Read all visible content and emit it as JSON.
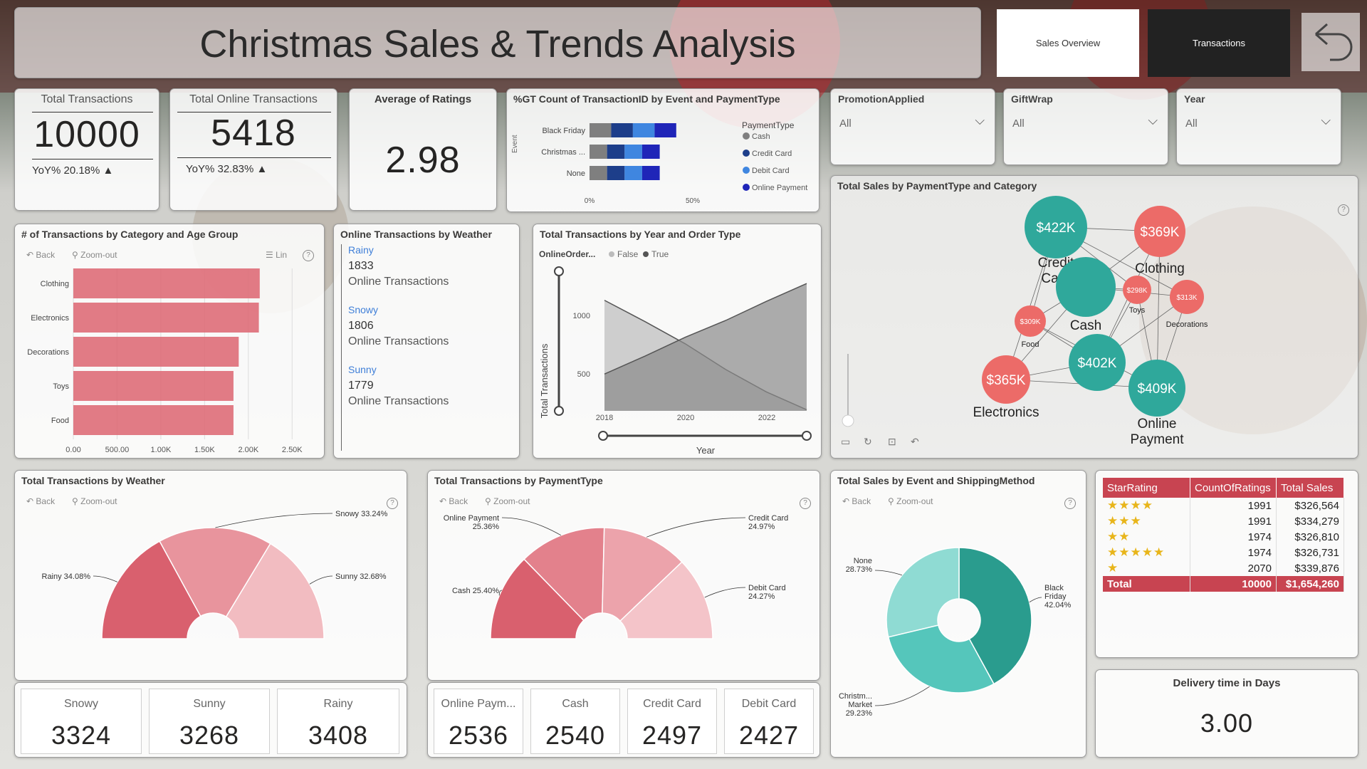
{
  "header": {
    "title": "Christmas Sales & Trends Analysis"
  },
  "nav": {
    "sales_overview": "Sales Overview",
    "transactions": "Transactions"
  },
  "kpis": {
    "total_transactions": {
      "label": "Total Transactions",
      "value": "10000",
      "yoy": "YoY% 20.18% ▲"
    },
    "total_online": {
      "label": "Total Online Transactions",
      "value": "5418",
      "yoy": "YoY% 32.83% ▲"
    },
    "avg_ratings": {
      "label": "Average of Ratings",
      "value": "2.98"
    }
  },
  "slicers": [
    {
      "label": "PromotionApplied",
      "value": "All"
    },
    {
      "label": "GiftWrap",
      "value": "All"
    },
    {
      "label": "Year",
      "value": "All"
    }
  ],
  "event_payment": {
    "title": "%GT Count of TransactionID by Event and PaymentType",
    "axis_label": "Event",
    "legend_title": "PaymentType",
    "legend": [
      "Cash",
      "Credit Card",
      "Debit Card",
      "Online Payment"
    ],
    "categories": [
      "Black Friday",
      "Christmas ...",
      "None"
    ],
    "ticks": [
      "0%",
      "50%"
    ]
  },
  "category_age": {
    "title": "# of Transactions by Category and Age Group",
    "toolbar": {
      "back": "Back",
      "zoom": "Zoom-out",
      "lin": "Lin"
    },
    "categories": [
      "Clothing",
      "Electronics",
      "Decorations",
      "Toys",
      "Food"
    ],
    "ticks": [
      "0.00",
      "500.00",
      "1.00K",
      "1.50K",
      "2.00K",
      "2.50K"
    ]
  },
  "online_weather": {
    "title": "Online Transactions by Weather",
    "items": [
      {
        "label": "Rainy",
        "value": "1833",
        "sub": "Online Transactions"
      },
      {
        "label": "Snowy",
        "value": "1806",
        "sub": "Online Transactions"
      },
      {
        "label": "Sunny",
        "value": "1779",
        "sub": "Online Transactions"
      }
    ]
  },
  "year_order": {
    "title": "Total Transactions by Year and Order Type",
    "legend_title": "OnlineOrder...",
    "legend": [
      "False",
      "True"
    ],
    "ylabel": "Total Transactions",
    "xlabel": "Year",
    "yticks": [
      "1000",
      "500"
    ],
    "xticks": [
      "2018",
      "2020",
      "2022"
    ]
  },
  "network": {
    "title": "Total Sales by PaymentType and Category",
    "nodes": [
      {
        "value": "$422K",
        "label": "Credit Card",
        "type": "payment"
      },
      {
        "value": "$369K",
        "label": "Clothing",
        "type": "category"
      },
      {
        "value": "",
        "label": "Cash",
        "type": "payment"
      },
      {
        "value": "$298K",
        "label": "Toys",
        "type": "category"
      },
      {
        "value": "$313K",
        "label": "Decorations",
        "type": "category"
      },
      {
        "value": "$309K",
        "label": "Food",
        "type": "category"
      },
      {
        "value": "$402K",
        "label": "",
        "type": "payment"
      },
      {
        "value": "$365K",
        "label": "Electronics",
        "type": "category"
      },
      {
        "value": "$409K",
        "label": "Online Payment",
        "type": "payment"
      }
    ],
    "colors": {
      "payment": "#2fa89b",
      "category": "#ec6b68"
    }
  },
  "weather_donut": {
    "title": "Total Transactions by Weather",
    "toolbar": {
      "back": "Back",
      "zoom": "Zoom-out"
    },
    "slices": [
      {
        "label": "Rainy 34.08%",
        "pct": 34.08,
        "color": "#d9606e"
      },
      {
        "label": "Snowy 33.24%",
        "pct": 33.24,
        "color": "#e8949d"
      },
      {
        "label": "Sunny 32.68%",
        "pct": 32.68,
        "color": "#f2bcc1"
      }
    ]
  },
  "payment_donut": {
    "title": "Total Transactions by PaymentType",
    "toolbar": {
      "back": "Back",
      "zoom": "Zoom-out"
    },
    "slices": [
      {
        "label": "Cash 25.40%",
        "pct": 25.4,
        "color": "#d9606e"
      },
      {
        "label": "Online Payment 25.36%",
        "pct": 25.36,
        "color": "#e3818c"
      },
      {
        "label": "Credit Card 24.97%",
        "pct": 24.97,
        "color": "#eca3ab"
      },
      {
        "label": "Debit Card 24.27%",
        "pct": 24.27,
        "color": "#f4c4c9"
      }
    ]
  },
  "event_shipping": {
    "title": "Total Sales by Event and ShippingMethod",
    "toolbar": {
      "back": "Back",
      "zoom": "Zoom-out"
    },
    "slices": [
      {
        "label": "Black Friday 42.04%",
        "pct": 42.04,
        "color": "#2a9c8e"
      },
      {
        "label": "Christm... Market 29.23%",
        "pct": 29.23,
        "color": "#55c6bb"
      },
      {
        "label": "None 28.73%",
        "pct": 28.73,
        "color": "#8fdbd3"
      }
    ]
  },
  "weather_tiles": [
    {
      "label": "Snowy",
      "value": "3324"
    },
    {
      "label": "Sunny",
      "value": "3268"
    },
    {
      "label": "Rainy",
      "value": "3408"
    }
  ],
  "payment_tiles": [
    {
      "label": "Online Paym...",
      "value": "2536"
    },
    {
      "label": "Cash",
      "value": "2540"
    },
    {
      "label": "Credit Card",
      "value": "2497"
    },
    {
      "label": "Debit Card",
      "value": "2427"
    }
  ],
  "ratings_table": {
    "headers": [
      "StarRating",
      "CountOfRatings",
      "Total Sales"
    ],
    "rows": [
      {
        "stars": "★★★★",
        "count": "1991",
        "sales": "$326,564"
      },
      {
        "stars": "★★★",
        "count": "1991",
        "sales": "$334,279"
      },
      {
        "stars": "★★",
        "count": "1974",
        "sales": "$326,810"
      },
      {
        "stars": "★★★★★",
        "count": "1974",
        "sales": "$326,731"
      },
      {
        "stars": "★",
        "count": "2070",
        "sales": "$339,876"
      }
    ],
    "total": {
      "label": "Total",
      "count": "10000",
      "sales": "$1,654,260"
    }
  },
  "delivery": {
    "label": "Delivery time in Days",
    "value": "3.00"
  },
  "chart_data": [
    {
      "type": "bar",
      "title": "# of Transactions by Category and Age Group",
      "categories": [
        "Clothing",
        "Electronics",
        "Decorations",
        "Toys",
        "Food"
      ],
      "values": [
        2130,
        2120,
        1890,
        1830,
        1830
      ],
      "xlim": [
        0,
        2750
      ]
    },
    {
      "type": "bar",
      "title": "%GT Count of TransactionID by Event and PaymentType",
      "stacked": true,
      "categories": [
        "Black Friday",
        "Christmas ...",
        "None"
      ],
      "series": [
        {
          "name": "Cash",
          "values": [
            10.5,
            8.5,
            8.5
          ],
          "color": "#7f7f7f"
        },
        {
          "name": "Credit Card",
          "values": [
            10.5,
            8.5,
            8.5
          ],
          "color": "#1d3e8a"
        },
        {
          "name": "Debit Card",
          "values": [
            10.5,
            8.5,
            8.5
          ],
          "color": "#3f86e0"
        },
        {
          "name": "Online Payment",
          "values": [
            10.5,
            8.5,
            8.5
          ],
          "color": "#1f25b8"
        }
      ],
      "xlim": [
        0,
        60
      ]
    },
    {
      "type": "area",
      "title": "Total Transactions by Year and Order Type",
      "x": [
        2018,
        2019,
        2020,
        2021,
        2022,
        2023
      ],
      "series": [
        {
          "name": "False",
          "values": [
            1240,
            1050,
            850,
            620,
            420,
            260
          ],
          "color": "#bcbcbc"
        },
        {
          "name": "True",
          "values": [
            580,
            740,
            910,
            1060,
            1230,
            1390
          ],
          "color": "#8a8a8a"
        }
      ],
      "ylim": [
        250,
        1500
      ]
    },
    {
      "type": "pie",
      "title": "Total Transactions by Weather",
      "categories": [
        "Rainy",
        "Snowy",
        "Sunny"
      ],
      "values": [
        34.08,
        33.24,
        32.68
      ]
    },
    {
      "type": "pie",
      "title": "Total Transactions by PaymentType",
      "categories": [
        "Cash",
        "Online Payment",
        "Credit Card",
        "Debit Card"
      ],
      "values": [
        25.4,
        25.36,
        24.97,
        24.27
      ]
    },
    {
      "type": "pie",
      "title": "Total Sales by Event and ShippingMethod",
      "categories": [
        "Black Friday",
        "Christm... Market",
        "None"
      ],
      "values": [
        42.04,
        29.23,
        28.73
      ]
    }
  ]
}
